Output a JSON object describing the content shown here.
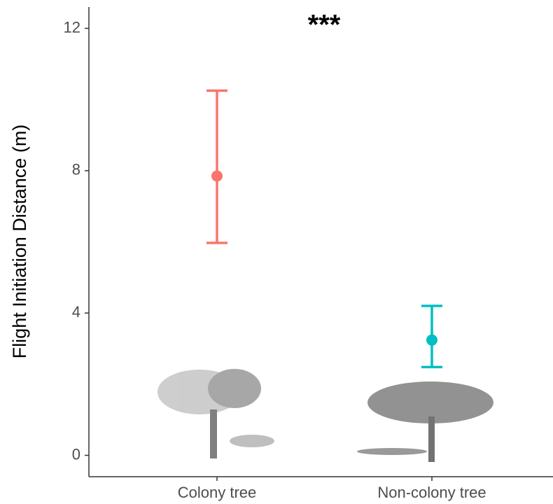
{
  "chart_data": {
    "type": "pointrange",
    "y_label": "Flight Initiation Distance (m)",
    "annotation": "***",
    "categories": [
      "Colony tree",
      "Non-colony tree"
    ],
    "values": [
      7.85,
      3.24
    ],
    "lower": [
      5.97,
      2.48
    ],
    "upper": [
      10.25,
      4.2
    ],
    "colors": [
      "#F8766D",
      "#00BFC4"
    ],
    "ylim": [
      -0.6,
      12.6
    ],
    "yticks": [
      0,
      4,
      8,
      12
    ],
    "grid": false
  }
}
